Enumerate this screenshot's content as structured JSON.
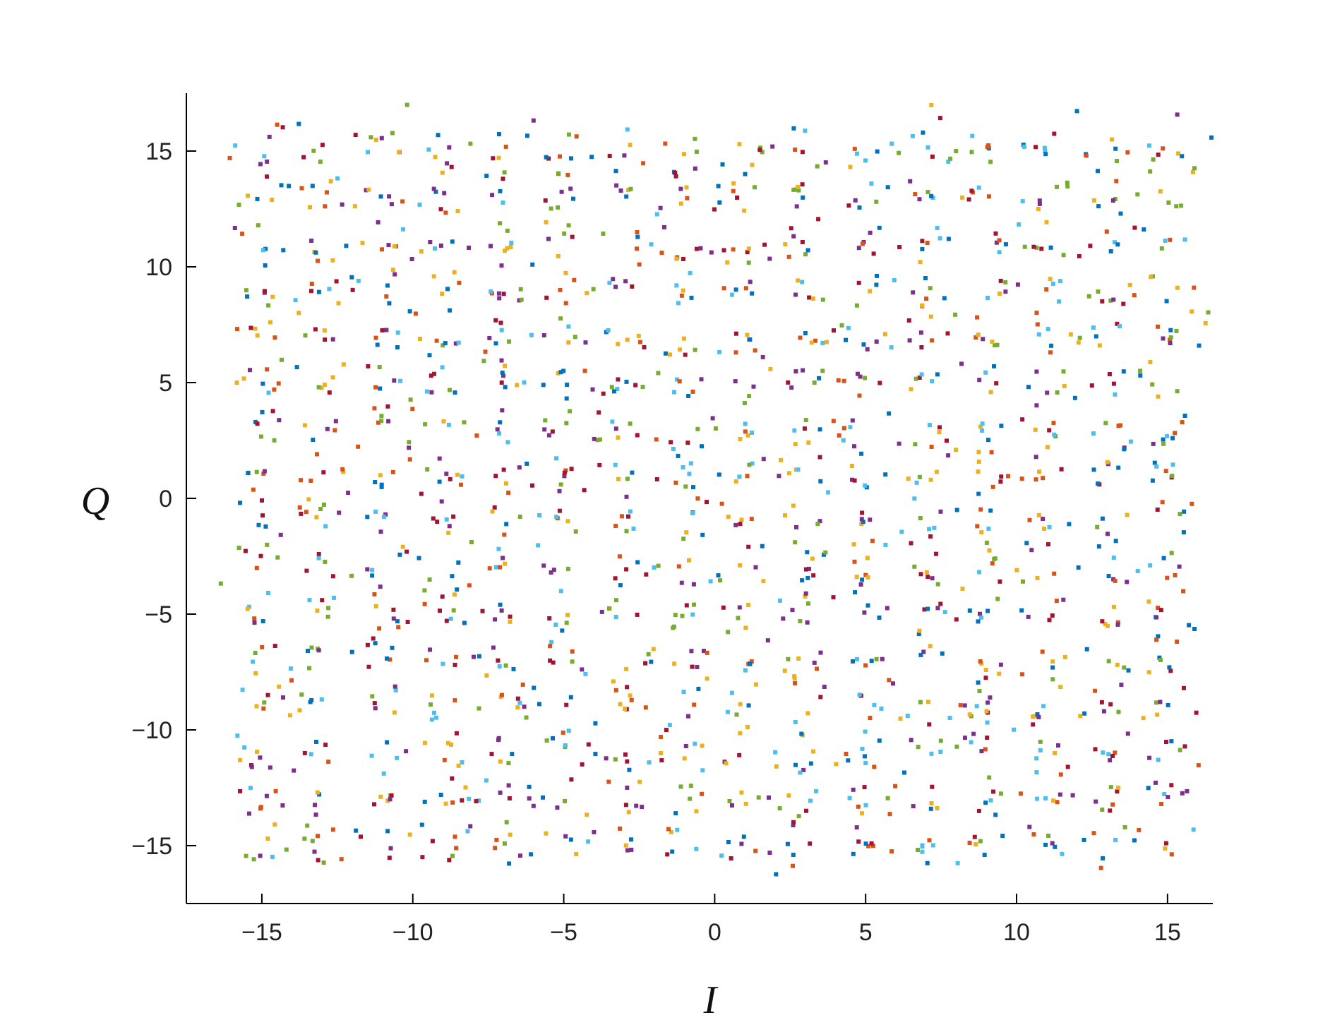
{
  "chart_data": {
    "type": "scatter",
    "title": "",
    "xlabel": "I",
    "ylabel": "Q",
    "xlim": [
      -17.5,
      16.5
    ],
    "ylim": [
      -17.5,
      17.5
    ],
    "xticks": [
      -15,
      -10,
      -5,
      0,
      5,
      10,
      15
    ],
    "yticks": [
      -15,
      -10,
      -5,
      0,
      5,
      10,
      15
    ],
    "xtick_labels": [
      "−15",
      "−10",
      "−5",
      "0",
      "5",
      "10",
      "15"
    ],
    "ytick_labels": [
      "−15",
      "−10",
      "−5",
      "0",
      "5",
      "10",
      "15"
    ],
    "grid": false,
    "legend": "none",
    "constellation": {
      "levels": [
        -15,
        -13,
        -11,
        -9,
        -7,
        -5,
        -3,
        -1,
        1,
        3,
        5,
        7,
        9,
        11,
        13,
        15
      ],
      "points_per_symbol": 6,
      "noise_std": 0.45,
      "scattered_outliers": 220
    },
    "series_colors": [
      "#0072BD",
      "#D95319",
      "#EDB120",
      "#7E2F8E",
      "#77AC30",
      "#4DBEEE",
      "#A2142F"
    ],
    "axis_color": "#000000"
  }
}
